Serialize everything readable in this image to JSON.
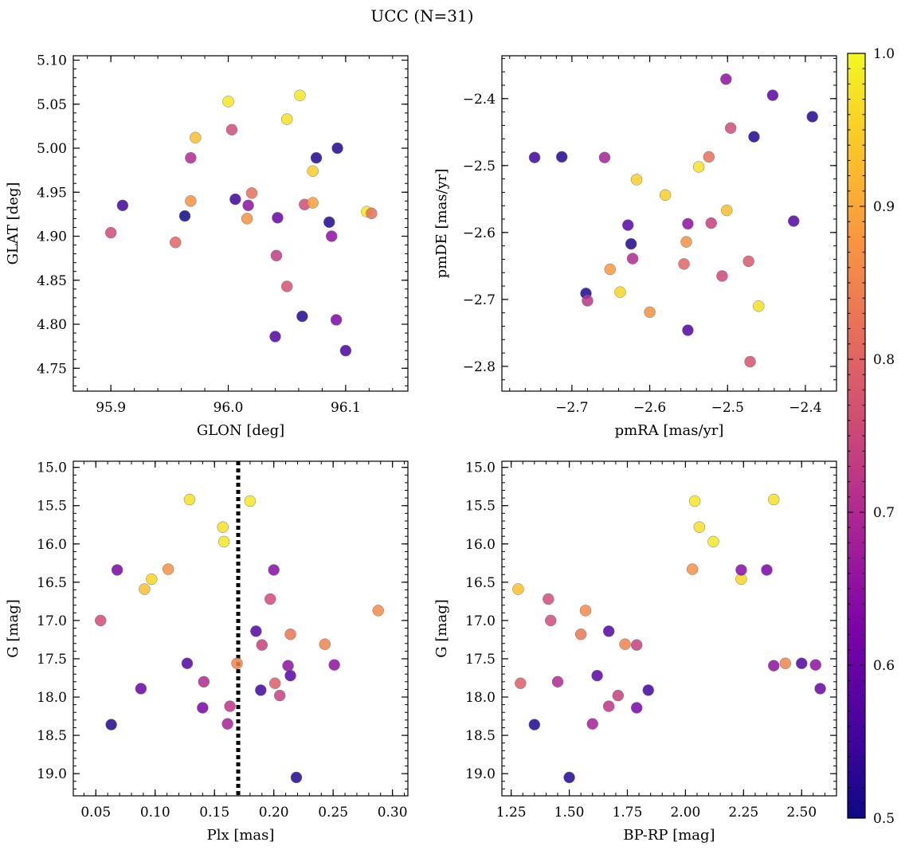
{
  "title": "UCC (N=31)",
  "colorbar": {
    "ticks": [
      0.5,
      0.6,
      0.7,
      0.8,
      0.9,
      1.0
    ],
    "tick_labels": [
      "0.5",
      "0.6",
      "0.7",
      "0.8",
      "0.9",
      "1.0"
    ],
    "range": [
      0.5,
      1.0
    ],
    "colormap": "plasma"
  },
  "chart_data": [
    {
      "type": "scatter",
      "xlabel": "GLON [deg]",
      "ylabel": "GLAT [deg]",
      "xlim": [
        95.868,
        96.153
      ],
      "ylim": [
        4.724,
        5.105
      ],
      "xticks": [
        95.9,
        96.0,
        96.1
      ],
      "xtick_labels": [
        "95.9",
        "96.0",
        "96.1"
      ],
      "xminor": 0.02,
      "yticks": [
        4.75,
        4.8,
        4.85,
        4.9,
        4.95,
        5.0,
        5.05,
        5.1
      ],
      "ytick_labels": [
        "4.75",
        "4.80",
        "4.85",
        "4.90",
        "4.95",
        "5.00",
        "5.05",
        "5.10"
      ],
      "yminor": 0.01,
      "points": [
        {
          "x": 95.9,
          "y": 4.904,
          "c": 0.76
        },
        {
          "x": 95.91,
          "y": 4.935,
          "c": 0.55
        },
        {
          "x": 95.955,
          "y": 4.893,
          "c": 0.8
        },
        {
          "x": 95.963,
          "y": 4.923,
          "c": 0.5
        },
        {
          "x": 95.968,
          "y": 4.94,
          "c": 0.87
        },
        {
          "x": 95.968,
          "y": 4.989,
          "c": 0.7
        },
        {
          "x": 95.972,
          "y": 5.012,
          "c": 0.93
        },
        {
          "x": 96.0,
          "y": 5.053,
          "c": 0.98
        },
        {
          "x": 96.003,
          "y": 5.021,
          "c": 0.76
        },
        {
          "x": 96.006,
          "y": 4.942,
          "c": 0.55
        },
        {
          "x": 96.016,
          "y": 4.92,
          "c": 0.87
        },
        {
          "x": 96.017,
          "y": 4.935,
          "c": 0.65
        },
        {
          "x": 96.02,
          "y": 4.949,
          "c": 0.82
        },
        {
          "x": 96.04,
          "y": 4.786,
          "c": 0.57
        },
        {
          "x": 96.041,
          "y": 4.878,
          "c": 0.73
        },
        {
          "x": 96.042,
          "y": 4.921,
          "c": 0.6
        },
        {
          "x": 96.05,
          "y": 4.843,
          "c": 0.77
        },
        {
          "x": 96.05,
          "y": 5.033,
          "c": 0.97
        },
        {
          "x": 96.061,
          "y": 5.06,
          "c": 0.98
        },
        {
          "x": 96.063,
          "y": 4.809,
          "c": 0.52
        },
        {
          "x": 96.065,
          "y": 4.936,
          "c": 0.76
        },
        {
          "x": 96.072,
          "y": 4.974,
          "c": 0.95
        },
        {
          "x": 96.072,
          "y": 4.938,
          "c": 0.89
        },
        {
          "x": 96.075,
          "y": 4.989,
          "c": 0.52
        },
        {
          "x": 96.086,
          "y": 4.916,
          "c": 0.52
        },
        {
          "x": 96.088,
          "y": 4.9,
          "c": 0.65
        },
        {
          "x": 96.092,
          "y": 4.805,
          "c": 0.63
        },
        {
          "x": 96.093,
          "y": 5.0,
          "c": 0.52
        },
        {
          "x": 96.1,
          "y": 4.77,
          "c": 0.56
        },
        {
          "x": 96.118,
          "y": 4.928,
          "c": 0.98
        },
        {
          "x": 96.122,
          "y": 4.926,
          "c": 0.82
        }
      ]
    },
    {
      "type": "scatter",
      "xlabel": "pmRA [mas/yr]",
      "ylabel": "pmDE [mas/yr]",
      "xlim": [
        -2.79,
        -2.36
      ],
      "ylim": [
        -2.837,
        -2.336
      ],
      "xticks": [
        -2.7,
        -2.6,
        -2.5,
        -2.4
      ],
      "xtick_labels": [
        "−2.7",
        "−2.6",
        "−2.5",
        "−2.4"
      ],
      "xminor": 0.02,
      "yticks": [
        -2.8,
        -2.7,
        -2.6,
        -2.5,
        -2.4
      ],
      "ytick_labels": [
        "−2.8",
        "−2.7",
        "−2.6",
        "−2.5",
        "−2.4"
      ],
      "yminor": 0.02,
      "points": [
        {
          "x": -2.748,
          "y": -2.488,
          "c": 0.55
        },
        {
          "x": -2.713,
          "y": -2.487,
          "c": 0.52
        },
        {
          "x": -2.682,
          "y": -2.691,
          "c": 0.52
        },
        {
          "x": -2.68,
          "y": -2.702,
          "c": 0.72
        },
        {
          "x": -2.658,
          "y": -2.488,
          "c": 0.68
        },
        {
          "x": -2.651,
          "y": -2.655,
          "c": 0.88
        },
        {
          "x": -2.638,
          "y": -2.689,
          "c": 0.96
        },
        {
          "x": -2.628,
          "y": -2.589,
          "c": 0.58
        },
        {
          "x": -2.624,
          "y": -2.617,
          "c": 0.52
        },
        {
          "x": -2.622,
          "y": -2.639,
          "c": 0.7
        },
        {
          "x": -2.617,
          "y": -2.521,
          "c": 0.95
        },
        {
          "x": -2.6,
          "y": -2.719,
          "c": 0.87
        },
        {
          "x": -2.58,
          "y": -2.544,
          "c": 0.95
        },
        {
          "x": -2.556,
          "y": -2.647,
          "c": 0.8
        },
        {
          "x": -2.553,
          "y": -2.614,
          "c": 0.87
        },
        {
          "x": -2.551,
          "y": -2.587,
          "c": 0.65
        },
        {
          "x": -2.551,
          "y": -2.746,
          "c": 0.57
        },
        {
          "x": -2.537,
          "y": -2.502,
          "c": 0.97
        },
        {
          "x": -2.524,
          "y": -2.487,
          "c": 0.82
        },
        {
          "x": -2.521,
          "y": -2.586,
          "c": 0.74
        },
        {
          "x": -2.507,
          "y": -2.665,
          "c": 0.75
        },
        {
          "x": -2.502,
          "y": -2.371,
          "c": 0.65
        },
        {
          "x": -2.501,
          "y": -2.567,
          "c": 0.93
        },
        {
          "x": -2.496,
          "y": -2.444,
          "c": 0.76
        },
        {
          "x": -2.473,
          "y": -2.643,
          "c": 0.78
        },
        {
          "x": -2.471,
          "y": -2.793,
          "c": 0.77
        },
        {
          "x": -2.466,
          "y": -2.457,
          "c": 0.52
        },
        {
          "x": -2.46,
          "y": -2.71,
          "c": 0.97
        },
        {
          "x": -2.442,
          "y": -2.395,
          "c": 0.58
        },
        {
          "x": -2.415,
          "y": -2.583,
          "c": 0.57
        },
        {
          "x": -2.391,
          "y": -2.427,
          "c": 0.52
        }
      ]
    },
    {
      "type": "scatter",
      "xlabel": "Plx [mas]",
      "ylabel": "G [mag]",
      "xlim": [
        0.031,
        0.313
      ],
      "ylim": [
        19.29,
        14.92
      ],
      "xticks": [
        0.05,
        0.1,
        0.15,
        0.2,
        0.25,
        0.3
      ],
      "xtick_labels": [
        "0.05",
        "0.10",
        "0.15",
        "0.20",
        "0.25",
        "0.30"
      ],
      "xminor": 0.01,
      "yticks": [
        15.0,
        15.5,
        16.0,
        16.5,
        17.0,
        17.5,
        18.0,
        18.5,
        19.0
      ],
      "ytick_labels": [
        "15.0",
        "15.5",
        "16.0",
        "16.5",
        "17.0",
        "17.5",
        "18.0",
        "18.5",
        "19.0"
      ],
      "yminor": 0.1,
      "vline": {
        "x": 0.17,
        "style": "dotted"
      },
      "points": [
        {
          "x": 0.054,
          "y": 17.0,
          "c": 0.76
        },
        {
          "x": 0.063,
          "y": 18.36,
          "c": 0.52
        },
        {
          "x": 0.068,
          "y": 16.34,
          "c": 0.62
        },
        {
          "x": 0.088,
          "y": 17.89,
          "c": 0.6
        },
        {
          "x": 0.091,
          "y": 16.59,
          "c": 0.93
        },
        {
          "x": 0.097,
          "y": 16.46,
          "c": 0.96
        },
        {
          "x": 0.111,
          "y": 16.33,
          "c": 0.87
        },
        {
          "x": 0.127,
          "y": 17.56,
          "c": 0.57
        },
        {
          "x": 0.129,
          "y": 15.42,
          "c": 0.97
        },
        {
          "x": 0.14,
          "y": 18.14,
          "c": 0.62
        },
        {
          "x": 0.141,
          "y": 17.8,
          "c": 0.7
        },
        {
          "x": 0.157,
          "y": 15.78,
          "c": 0.97
        },
        {
          "x": 0.158,
          "y": 15.97,
          "c": 0.98
        },
        {
          "x": 0.161,
          "y": 18.35,
          "c": 0.68
        },
        {
          "x": 0.163,
          "y": 18.12,
          "c": 0.72
        },
        {
          "x": 0.169,
          "y": 17.56,
          "c": 0.85
        },
        {
          "x": 0.18,
          "y": 15.44,
          "c": 0.98
        },
        {
          "x": 0.185,
          "y": 17.14,
          "c": 0.57
        },
        {
          "x": 0.189,
          "y": 17.91,
          "c": 0.55
        },
        {
          "x": 0.19,
          "y": 17.32,
          "c": 0.74
        },
        {
          "x": 0.197,
          "y": 16.72,
          "c": 0.76
        },
        {
          "x": 0.2,
          "y": 16.34,
          "c": 0.64
        },
        {
          "x": 0.201,
          "y": 17.82,
          "c": 0.79
        },
        {
          "x": 0.205,
          "y": 17.98,
          "c": 0.74
        },
        {
          "x": 0.212,
          "y": 17.59,
          "c": 0.65
        },
        {
          "x": 0.214,
          "y": 17.72,
          "c": 0.58
        },
        {
          "x": 0.214,
          "y": 17.18,
          "c": 0.83
        },
        {
          "x": 0.219,
          "y": 19.05,
          "c": 0.52
        },
        {
          "x": 0.243,
          "y": 17.31,
          "c": 0.85
        },
        {
          "x": 0.251,
          "y": 17.58,
          "c": 0.65
        },
        {
          "x": 0.288,
          "y": 16.87,
          "c": 0.86
        }
      ]
    },
    {
      "type": "scatter",
      "xlabel": "BP-RP [mag]",
      "ylabel": "G [mag]",
      "xlim": [
        1.21,
        2.65
      ],
      "ylim": [
        19.29,
        14.92
      ],
      "xticks": [
        1.25,
        1.5,
        1.75,
        2.0,
        2.25,
        2.5
      ],
      "xtick_labels": [
        "1.25",
        "1.50",
        "1.75",
        "2.00",
        "2.25",
        "2.50"
      ],
      "xminor": 0.05,
      "yticks": [
        15.0,
        15.5,
        16.0,
        16.5,
        17.0,
        17.5,
        18.0,
        18.5,
        19.0
      ],
      "ytick_labels": [
        "15.0",
        "15.5",
        "16.0",
        "16.5",
        "17.0",
        "17.5",
        "18.0",
        "18.5",
        "19.0"
      ],
      "yminor": 0.1,
      "points": [
        {
          "x": 1.28,
          "y": 16.59,
          "c": 0.93
        },
        {
          "x": 1.29,
          "y": 17.82,
          "c": 0.79
        },
        {
          "x": 1.35,
          "y": 18.36,
          "c": 0.52
        },
        {
          "x": 1.41,
          "y": 16.72,
          "c": 0.76
        },
        {
          "x": 1.42,
          "y": 17.0,
          "c": 0.76
        },
        {
          "x": 1.45,
          "y": 17.8,
          "c": 0.7
        },
        {
          "x": 1.5,
          "y": 19.05,
          "c": 0.52
        },
        {
          "x": 1.55,
          "y": 17.18,
          "c": 0.83
        },
        {
          "x": 1.57,
          "y": 16.87,
          "c": 0.86
        },
        {
          "x": 1.6,
          "y": 18.35,
          "c": 0.68
        },
        {
          "x": 1.62,
          "y": 17.72,
          "c": 0.58
        },
        {
          "x": 1.67,
          "y": 17.14,
          "c": 0.57
        },
        {
          "x": 1.67,
          "y": 18.12,
          "c": 0.72
        },
        {
          "x": 1.71,
          "y": 17.98,
          "c": 0.74
        },
        {
          "x": 1.74,
          "y": 17.31,
          "c": 0.85
        },
        {
          "x": 1.79,
          "y": 17.32,
          "c": 0.74
        },
        {
          "x": 1.79,
          "y": 18.14,
          "c": 0.62
        },
        {
          "x": 1.84,
          "y": 17.91,
          "c": 0.55
        },
        {
          "x": 2.03,
          "y": 16.33,
          "c": 0.87
        },
        {
          "x": 2.04,
          "y": 15.44,
          "c": 0.98
        },
        {
          "x": 2.06,
          "y": 15.78,
          "c": 0.97
        },
        {
          "x": 2.12,
          "y": 15.97,
          "c": 0.98
        },
        {
          "x": 2.24,
          "y": 16.46,
          "c": 0.96
        },
        {
          "x": 2.24,
          "y": 16.34,
          "c": 0.64
        },
        {
          "x": 2.35,
          "y": 16.34,
          "c": 0.62
        },
        {
          "x": 2.38,
          "y": 15.42,
          "c": 0.97
        },
        {
          "x": 2.38,
          "y": 17.59,
          "c": 0.65
        },
        {
          "x": 2.43,
          "y": 17.56,
          "c": 0.85
        },
        {
          "x": 2.5,
          "y": 17.56,
          "c": 0.57
        },
        {
          "x": 2.56,
          "y": 17.58,
          "c": 0.65
        },
        {
          "x": 2.58,
          "y": 17.89,
          "c": 0.6
        }
      ]
    }
  ]
}
